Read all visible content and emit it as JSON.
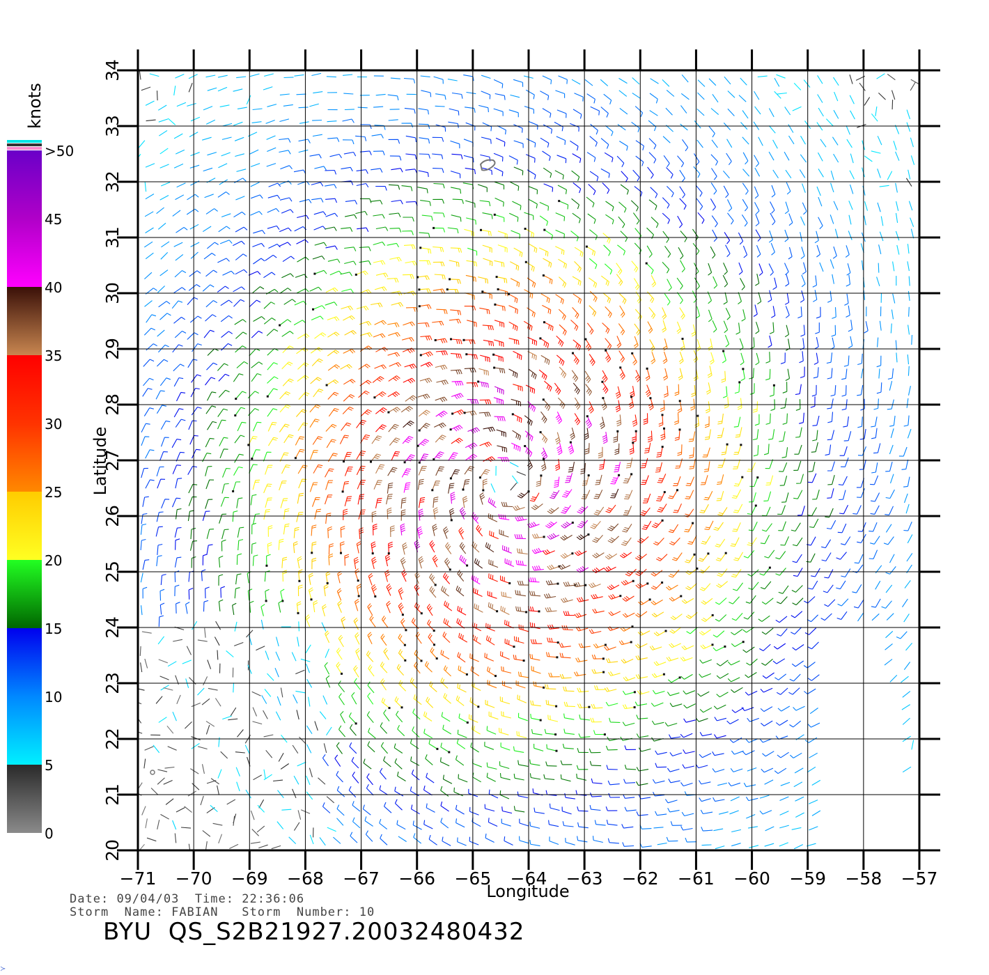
{
  "chart_data": {
    "type": "wind-vector-map",
    "xlabel": "Longitude",
    "ylabel": "Latitude",
    "xlim": [
      -71,
      -57
    ],
    "ylim": [
      20,
      34
    ],
    "x_ticks": [
      "−71",
      "−70",
      "−69",
      "−68",
      "−67",
      "−66",
      "−65",
      "−64",
      "−63",
      "−62",
      "−61",
      "−60",
      "−59",
      "−58",
      "−57"
    ],
    "y_ticks": [
      "20",
      "21",
      "22",
      "23",
      "24",
      "25",
      "26",
      "27",
      "28",
      "29",
      "30",
      "31",
      "32",
      "33",
      "34"
    ],
    "grid": true,
    "storm_center": {
      "lon": -64.4,
      "lat": 26.6
    },
    "colorbar": {
      "unit": "knots",
      "labels": [
        "0",
        "5",
        "10",
        "15",
        "20",
        "25",
        "30",
        "35",
        "40",
        "45",
        ">50"
      ],
      "stops": [
        {
          "speed": 0,
          "color": "#8a8a8a"
        },
        {
          "speed": 5,
          "color": "#2a2a2a"
        },
        {
          "speed": 5.01,
          "color": "#00f0ff"
        },
        {
          "speed": 10,
          "color": "#0088ff"
        },
        {
          "speed": 15,
          "color": "#0000ee"
        },
        {
          "speed": 15.01,
          "color": "#006600"
        },
        {
          "speed": 20,
          "color": "#22ff22"
        },
        {
          "speed": 20.01,
          "color": "#ffff22"
        },
        {
          "speed": 25,
          "color": "#ffcc00"
        },
        {
          "speed": 25.01,
          "color": "#ff8800"
        },
        {
          "speed": 30,
          "color": "#ff3300"
        },
        {
          "speed": 35,
          "color": "#ff0000"
        },
        {
          "speed": 35.01,
          "color": "#c88650"
        },
        {
          "speed": 40,
          "color": "#3a1008"
        },
        {
          "speed": 40.01,
          "color": "#ff00ff"
        },
        {
          "speed": 45,
          "color": "#b000c8"
        },
        {
          "speed": 50,
          "color": "#6a00c8"
        }
      ],
      "top_band_colors": [
        "#00e5e5",
        "#333333",
        "#ff88cc"
      ]
    }
  },
  "header": {
    "date_label": "Date:",
    "date": "09/04/03",
    "time_label": "Time:",
    "time": "22:36:06",
    "storm_name_label": "Storm  Name:",
    "storm_name": "FABIAN",
    "storm_number_label": "Storm  Number:",
    "storm_number": "10"
  },
  "product_id": "BYU  QS_S2B21927.20032480432"
}
